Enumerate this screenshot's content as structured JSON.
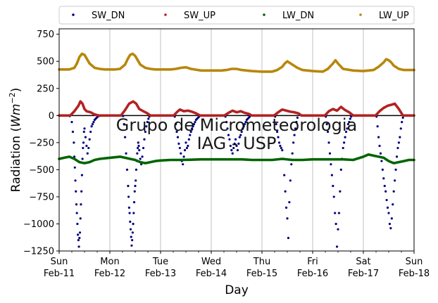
{
  "chart_data": {
    "type": "scatter",
    "title": "",
    "xlabel": "Day",
    "ylabel_main": "Radiation (",
    "ylabel_unit": "Wm",
    "ylabel_exp": "−2",
    "ylabel_close": ")",
    "ylim": [
      -1250,
      800
    ],
    "xlim": [
      0,
      7
    ],
    "yticks": [
      750,
      500,
      250,
      0,
      -250,
      -500,
      -750,
      -1000,
      -1250
    ],
    "ytick_labels": [
      "750",
      "500",
      "250",
      "0",
      "−250",
      "−500",
      "−750",
      "−1000",
      "−1250"
    ],
    "xticks": [
      {
        "x": 0,
        "day": "Sun",
        "date": "Feb-11"
      },
      {
        "x": 1,
        "day": "Mon",
        "date": "Feb-12"
      },
      {
        "x": 2,
        "day": "Tue",
        "date": "Feb-13"
      },
      {
        "x": 3,
        "day": "Wed",
        "date": "Feb-14"
      },
      {
        "x": 4,
        "day": "Thu",
        "date": "Feb-15"
      },
      {
        "x": 5,
        "day": "Fri",
        "date": "Feb-16"
      },
      {
        "x": 6,
        "day": "Sat",
        "date": "Feb-17"
      },
      {
        "x": 7,
        "day": "Sun",
        "date": "Feb-18"
      }
    ],
    "grid": "vertical",
    "legend_placement": "top, outside plot, single row",
    "watermark": [
      "Grupo de Micrometeorologia",
      "IAG - USP"
    ],
    "series": [
      {
        "name": "SW_DN",
        "color": "#00007f",
        "style": "dots",
        "x": [
          0.21,
          0.25,
          0.27,
          0.29,
          0.3,
          0.31,
          0.32,
          0.33,
          0.34,
          0.35,
          0.36,
          0.37,
          0.38,
          0.39,
          0.4,
          0.41,
          0.42,
          0.43,
          0.44,
          0.45,
          0.46,
          0.47,
          0.48,
          0.49,
          0.5,
          0.52,
          0.54,
          0.56,
          0.58,
          0.6,
          0.62,
          0.64,
          0.66,
          0.68,
          0.7,
          0.72,
          0.74,
          0.76,
          0.78,
          0.8,
          1.26,
          1.28,
          1.3,
          1.32,
          1.34,
          1.36,
          1.37,
          1.38,
          1.39,
          1.4,
          1.41,
          1.42,
          1.43,
          1.44,
          1.45,
          1.46,
          1.47,
          1.48,
          1.49,
          1.5,
          1.51,
          1.52,
          1.53,
          1.54,
          1.55,
          1.56,
          1.57,
          1.58,
          1.6,
          1.62,
          1.64,
          1.66,
          1.68,
          1.7,
          1.72,
          1.74,
          1.76,
          1.78,
          2.28,
          2.3,
          2.32,
          2.34,
          2.36,
          2.38,
          2.4,
          2.42,
          2.44,
          2.46,
          2.48,
          2.5,
          2.52,
          2.54,
          2.56,
          2.58,
          2.6,
          2.62,
          2.64,
          2.66,
          2.68,
          2.7,
          2.72,
          2.74,
          2.76,
          3.28,
          3.3,
          3.32,
          3.34,
          3.36,
          3.38,
          3.4,
          3.42,
          3.44,
          3.46,
          3.48,
          3.5,
          3.52,
          3.54,
          3.56,
          3.58,
          3.6,
          3.62,
          3.64,
          3.66,
          3.68,
          3.7,
          3.72,
          3.74,
          3.76,
          4.26,
          4.28,
          4.3,
          4.32,
          4.34,
          4.36,
          4.38,
          4.4,
          4.42,
          4.44,
          4.46,
          4.48,
          4.5,
          4.52,
          4.54,
          4.56,
          4.58,
          4.6,
          4.62,
          4.64,
          4.66,
          4.68,
          4.7,
          5.26,
          5.28,
          5.3,
          5.32,
          5.34,
          5.36,
          5.38,
          5.4,
          5.42,
          5.44,
          5.46,
          5.48,
          5.5,
          5.52,
          5.54,
          5.56,
          5.58,
          5.6,
          5.62,
          5.64,
          5.66,
          5.68,
          5.7,
          5.72,
          5.74,
          5.76,
          6.26,
          6.28,
          6.3,
          6.32,
          6.34,
          6.36,
          6.38,
          6.4,
          6.42,
          6.44,
          6.46,
          6.48,
          6.5,
          6.52,
          6.54,
          6.56,
          6.58,
          6.6,
          6.62,
          6.64,
          6.66,
          6.68,
          6.7,
          6.72,
          6.74,
          6.76,
          6.78
        ],
        "y": [
          -5,
          -60,
          -150,
          -250,
          -380,
          -480,
          -600,
          -700,
          -820,
          -900,
          -1000,
          -1100,
          -1150,
          -1210,
          -1130,
          -1080,
          -950,
          -820,
          -700,
          -550,
          -400,
          -300,
          -250,
          -150,
          -120,
          -200,
          -280,
          -350,
          -300,
          -220,
          -150,
          -100,
          -80,
          -60,
          -40,
          -30,
          -20,
          -10,
          -5,
          -2,
          -5,
          -80,
          -200,
          -350,
          -500,
          -650,
          -750,
          -850,
          -900,
          -980,
          -1050,
          -1120,
          -1200,
          -1150,
          -1080,
          -1000,
          -900,
          -800,
          -700,
          -650,
          -600,
          -500,
          -420,
          -350,
          -300,
          -250,
          -280,
          -320,
          -400,
          -450,
          -380,
          -300,
          -220,
          -150,
          -100,
          -60,
          -30,
          -10,
          -10,
          -80,
          -150,
          -200,
          -260,
          -300,
          -350,
          -420,
          -450,
          -380,
          -320,
          -250,
          -300,
          -280,
          -220,
          -180,
          -150,
          -120,
          -100,
          -80,
          -60,
          -40,
          -30,
          -20,
          -10,
          -10,
          -60,
          -120,
          -180,
          -220,
          -280,
          -320,
          -350,
          -300,
          -260,
          -220,
          -280,
          -320,
          -260,
          -200,
          -180,
          -150,
          -120,
          -100,
          -80,
          -60,
          -40,
          -30,
          -20,
          -10,
          -10,
          -80,
          -150,
          -200,
          -250,
          -280,
          -300,
          -320,
          -400,
          -550,
          -700,
          -850,
          -950,
          -1130,
          -800,
          -600,
          -450,
          -350,
          -250,
          -180,
          -120,
          -60,
          -20,
          -10,
          -80,
          -150,
          -250,
          -350,
          -450,
          -550,
          -650,
          -750,
          -900,
          -1000,
          -1210,
          -1050,
          -900,
          -700,
          -500,
          -400,
          -300,
          -250,
          -200,
          -150,
          -120,
          -80,
          -60,
          -30,
          -10,
          -10,
          -100,
          -200,
          -280,
          -350,
          -420,
          -500,
          -580,
          -650,
          -700,
          -780,
          -850,
          -900,
          -1000,
          -1040,
          -950,
          -820,
          -700,
          -600,
          -500,
          -380,
          -300,
          -250,
          -200,
          -120,
          -60,
          -20
        ]
      },
      {
        "name": "SW_UP",
        "color": "#b22222",
        "style": "dense-band",
        "x": [
          0.0,
          0.22,
          0.3,
          0.38,
          0.42,
          0.46,
          0.5,
          0.54,
          0.62,
          0.7,
          0.78,
          1.0,
          1.22,
          1.3,
          1.38,
          1.46,
          1.52,
          1.58,
          1.66,
          1.74,
          1.8,
          2.0,
          2.26,
          2.32,
          2.38,
          2.46,
          2.54,
          2.62,
          2.7,
          2.78,
          3.0,
          3.26,
          3.34,
          3.42,
          3.5,
          3.58,
          3.66,
          3.74,
          3.8,
          4.0,
          4.24,
          4.32,
          4.4,
          4.48,
          4.56,
          4.64,
          4.72,
          4.78,
          5.0,
          5.24,
          5.32,
          5.4,
          5.48,
          5.56,
          5.64,
          5.72,
          5.8,
          6.0,
          6.24,
          6.32,
          6.4,
          6.48,
          6.56,
          6.62,
          6.7,
          6.78,
          7.0
        ],
        "y": [
          0,
          0,
          40,
          90,
          130,
          110,
          60,
          40,
          30,
          10,
          0,
          0,
          0,
          50,
          110,
          130,
          110,
          60,
          40,
          20,
          0,
          0,
          0,
          30,
          55,
          40,
          45,
          35,
          20,
          0,
          0,
          0,
          25,
          45,
          30,
          40,
          25,
          15,
          0,
          0,
          0,
          30,
          55,
          45,
          35,
          30,
          20,
          0,
          0,
          0,
          40,
          60,
          45,
          80,
          50,
          30,
          0,
          0,
          0,
          40,
          70,
          90,
          100,
          110,
          60,
          0,
          0
        ]
      },
      {
        "name": "LW_DN",
        "color": "#006400",
        "style": "dense-band",
        "x": [
          0.0,
          0.1,
          0.2,
          0.3,
          0.4,
          0.5,
          0.6,
          0.7,
          0.8,
          0.9,
          1.0,
          1.1,
          1.2,
          1.3,
          1.4,
          1.5,
          1.6,
          1.7,
          1.8,
          1.9,
          2.0,
          2.2,
          2.4,
          2.6,
          2.8,
          3.0,
          3.2,
          3.4,
          3.6,
          3.8,
          4.0,
          4.2,
          4.4,
          4.6,
          4.8,
          5.0,
          5.2,
          5.4,
          5.6,
          5.8,
          6.0,
          6.1,
          6.2,
          6.3,
          6.4,
          6.5,
          6.6,
          6.7,
          6.8,
          6.9,
          7.0
        ],
        "y": [
          -400,
          -390,
          -380,
          -400,
          -430,
          -440,
          -430,
          -410,
          -400,
          -395,
          -390,
          -385,
          -380,
          -390,
          -400,
          -410,
          -430,
          -440,
          -430,
          -420,
          -415,
          -410,
          -410,
          -408,
          -405,
          -405,
          -405,
          -405,
          -405,
          -410,
          -410,
          -410,
          -400,
          -410,
          -410,
          -405,
          -405,
          -405,
          -405,
          -410,
          -380,
          -360,
          -370,
          -380,
          -390,
          -420,
          -440,
          -430,
          -420,
          -410,
          -410
        ]
      },
      {
        "name": "LW_UP",
        "color": "#b8860b",
        "style": "dense-band",
        "x": [
          0.0,
          0.1,
          0.2,
          0.3,
          0.35,
          0.4,
          0.45,
          0.5,
          0.55,
          0.6,
          0.7,
          0.8,
          0.9,
          1.0,
          1.1,
          1.2,
          1.3,
          1.35,
          1.4,
          1.45,
          1.5,
          1.55,
          1.6,
          1.7,
          1.8,
          1.9,
          2.0,
          2.2,
          2.3,
          2.4,
          2.5,
          2.6,
          2.8,
          3.0,
          3.2,
          3.3,
          3.4,
          3.5,
          3.6,
          3.8,
          4.0,
          4.2,
          4.3,
          4.4,
          4.45,
          4.5,
          4.6,
          4.7,
          4.8,
          5.0,
          5.2,
          5.3,
          5.4,
          5.45,
          5.5,
          5.6,
          5.8,
          6.0,
          6.2,
          6.3,
          6.4,
          6.45,
          6.5,
          6.55,
          6.6,
          6.7,
          6.8,
          6.9,
          7.0
        ],
        "y": [
          425,
          425,
          425,
          440,
          480,
          540,
          570,
          560,
          520,
          480,
          440,
          430,
          425,
          425,
          425,
          430,
          470,
          520,
          560,
          570,
          550,
          510,
          470,
          440,
          430,
          425,
          425,
          425,
          430,
          440,
          445,
          430,
          415,
          415,
          415,
          420,
          430,
          430,
          420,
          410,
          405,
          405,
          420,
          450,
          480,
          500,
          470,
          440,
          420,
          410,
          405,
          430,
          480,
          510,
          480,
          430,
          415,
          410,
          420,
          450,
          490,
          520,
          510,
          490,
          460,
          430,
          420,
          420,
          420
        ]
      }
    ]
  },
  "colors": {
    "zero_line": "#000000",
    "grid": "#b0b0b0",
    "watermark": "#c8c8c8"
  }
}
